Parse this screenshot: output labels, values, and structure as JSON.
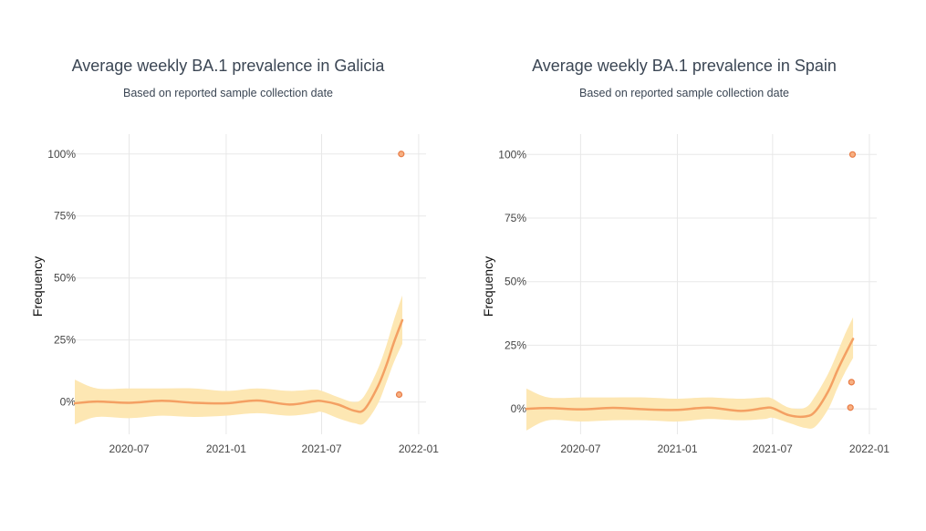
{
  "colors": {
    "line": "#f4a063",
    "band": "#fde7b3",
    "point_fill": "#f7b082",
    "point_stroke": "#e87b45",
    "grid": "#e8e8e8"
  },
  "chart_data": [
    {
      "type": "line",
      "title": "Average weekly BA.1 prevalence in Galicia",
      "subtitle": "Based on reported sample collection date",
      "xlabel": "",
      "ylabel": "Frequency",
      "x_ticks": [
        "2020-07",
        "2021-01",
        "2021-07",
        "2022-01"
      ],
      "y_ticks": [
        "0%",
        "25%",
        "50%",
        "75%",
        "100%"
      ],
      "xlim": [
        "2020-03-20",
        "2022-01-15"
      ],
      "ylim": [
        -0.13,
        1.08
      ],
      "grid": true,
      "series": [
        {
          "kind": "smoothed",
          "x": [
            "2020-03-20",
            "2020-05-01",
            "2020-07-01",
            "2020-09-01",
            "2020-11-01",
            "2021-01-01",
            "2021-03-01",
            "2021-05-01",
            "2021-06-15",
            "2021-07-01",
            "2021-08-01",
            "2021-09-01",
            "2021-09-20",
            "2021-10-15",
            "2021-11-01",
            "2021-11-15",
            "2021-12-01"
          ],
          "y": [
            -0.005,
            0.002,
            -0.003,
            0.005,
            -0.003,
            -0.005,
            0.006,
            -0.01,
            0.003,
            0.004,
            -0.01,
            -0.035,
            -0.03,
            0.06,
            0.15,
            0.24,
            0.33
          ],
          "lower": [
            -0.09,
            -0.06,
            -0.065,
            -0.055,
            -0.06,
            -0.055,
            -0.045,
            -0.055,
            -0.045,
            -0.04,
            -0.065,
            -0.085,
            -0.085,
            -0.01,
            0.08,
            0.16,
            0.235
          ],
          "upper": [
            0.09,
            0.055,
            0.055,
            0.055,
            0.055,
            0.045,
            0.055,
            0.045,
            0.05,
            0.045,
            0.02,
            0.0,
            0.025,
            0.13,
            0.23,
            0.33,
            0.43
          ]
        },
        {
          "kind": "observed",
          "x": [
            "2021-11-25",
            "2021-11-29"
          ],
          "y": [
            0.03,
            1.0
          ]
        }
      ]
    },
    {
      "type": "line",
      "title": "Average weekly BA.1 prevalence in Spain",
      "subtitle": "Based on reported sample collection date",
      "xlabel": "",
      "ylabel": "Frequency",
      "x_ticks": [
        "2020-07",
        "2021-01",
        "2021-07",
        "2022-01"
      ],
      "y_ticks": [
        "0%",
        "25%",
        "50%",
        "75%",
        "100%"
      ],
      "xlim": [
        "2020-03-20",
        "2022-01-15"
      ],
      "ylim": [
        -0.1,
        1.08
      ],
      "grid": true,
      "series": [
        {
          "kind": "smoothed",
          "x": [
            "2020-03-20",
            "2020-05-01",
            "2020-07-01",
            "2020-09-01",
            "2020-11-01",
            "2021-01-01",
            "2021-03-01",
            "2021-05-01",
            "2021-06-15",
            "2021-07-01",
            "2021-08-01",
            "2021-09-01",
            "2021-09-20",
            "2021-10-15",
            "2021-11-01",
            "2021-11-15",
            "2021-12-01"
          ],
          "y": [
            0.0,
            0.003,
            -0.002,
            0.004,
            -0.002,
            -0.004,
            0.005,
            -0.008,
            0.003,
            0.003,
            -0.025,
            -0.03,
            -0.01,
            0.07,
            0.15,
            0.21,
            0.275
          ],
          "lower": [
            -0.085,
            -0.045,
            -0.05,
            -0.045,
            -0.045,
            -0.05,
            -0.04,
            -0.045,
            -0.04,
            -0.035,
            -0.055,
            -0.075,
            -0.07,
            0.0,
            0.08,
            0.14,
            0.2
          ],
          "upper": [
            0.08,
            0.045,
            0.045,
            0.045,
            0.045,
            0.04,
            0.045,
            0.04,
            0.045,
            0.04,
            0.005,
            0.005,
            0.05,
            0.14,
            0.22,
            0.29,
            0.36
          ]
        },
        {
          "kind": "observed",
          "x": [
            "2021-11-26",
            "2021-11-28",
            "2021-11-30"
          ],
          "y": [
            0.005,
            0.105,
            1.0
          ]
        }
      ]
    }
  ]
}
